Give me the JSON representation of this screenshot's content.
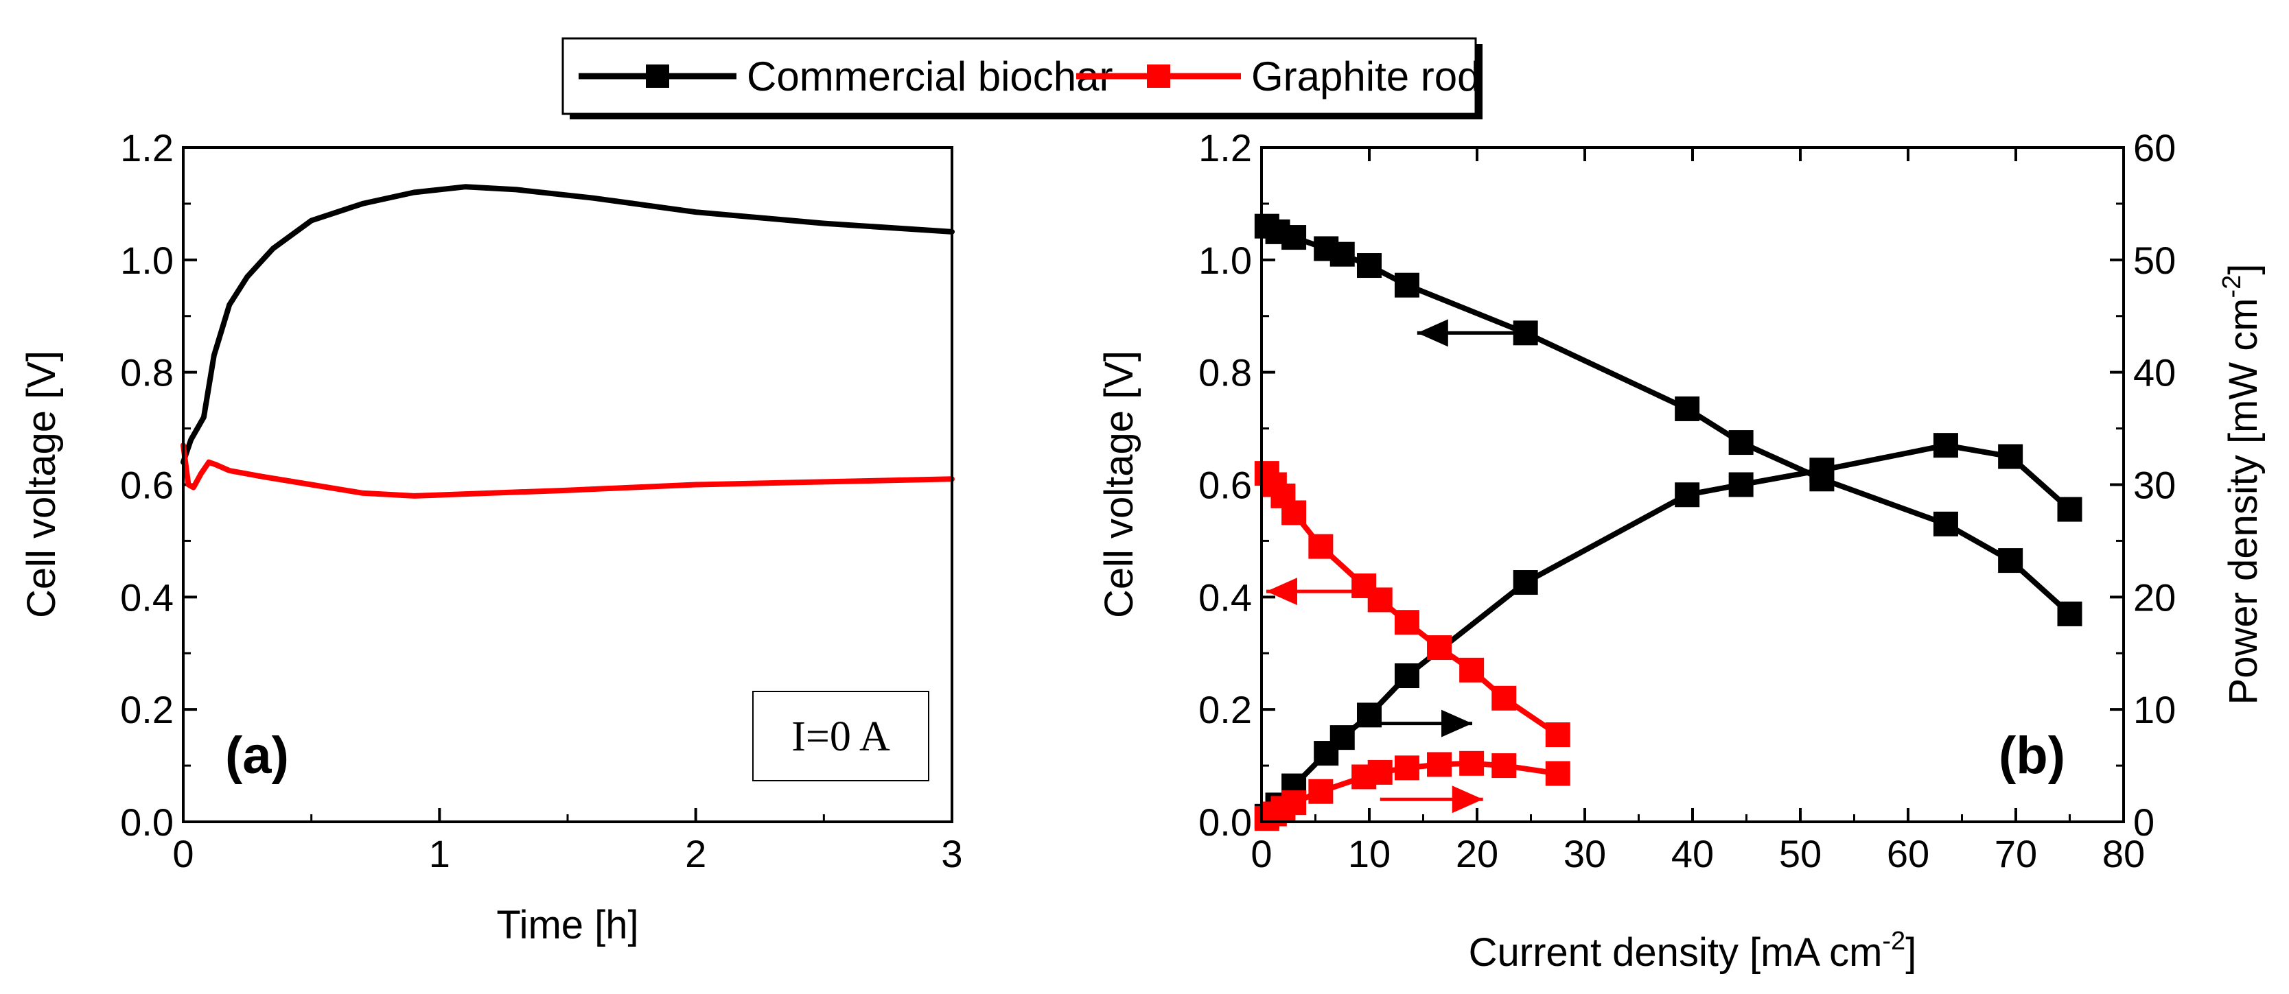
{
  "legend": {
    "items": [
      {
        "label": "Commercial biochar",
        "color": "#000000"
      },
      {
        "label": "Graphite rod",
        "color": "#ff0000"
      }
    ]
  },
  "panel_a": {
    "tag": "(a)",
    "annotation": "I=0 A",
    "xlabel": "Time [h]",
    "ylabel": "Cell voltage [V]",
    "x_ticks": [
      "0",
      "1",
      "2",
      "3"
    ],
    "y_ticks": [
      "0.0",
      "0.2",
      "0.4",
      "0.6",
      "0.8",
      "1.0",
      "1.2"
    ]
  },
  "panel_b": {
    "tag": "(b)",
    "xlabel": "Current density [mA cm",
    "xlabel_sup": "-2",
    "xlabel_end": "]",
    "ylabel": "Cell voltage [V]",
    "y2label": "Power density [mW cm",
    "y2label_sup": "-2",
    "y2label_end": "]",
    "x_ticks": [
      "0",
      "10",
      "20",
      "30",
      "40",
      "50",
      "60",
      "70",
      "80"
    ],
    "y_ticks": [
      "0.0",
      "0.2",
      "0.4",
      "0.6",
      "0.8",
      "1.0",
      "1.2"
    ],
    "y2_ticks": [
      "0",
      "10",
      "20",
      "30",
      "40",
      "50",
      "60"
    ]
  },
  "chart_data": [
    {
      "type": "line",
      "panel": "a",
      "title": "",
      "xlabel": "Time [h]",
      "ylabel": "Cell voltage [V]",
      "xlim": [
        0,
        3
      ],
      "ylim": [
        0,
        1.2
      ],
      "series": [
        {
          "name": "Commercial biochar",
          "color": "#000000",
          "x": [
            0,
            0.03,
            0.08,
            0.12,
            0.18,
            0.25,
            0.35,
            0.5,
            0.7,
            0.9,
            1.1,
            1.3,
            1.6,
            2.0,
            2.5,
            3.0
          ],
          "y": [
            0.64,
            0.68,
            0.72,
            0.83,
            0.92,
            0.97,
            1.02,
            1.07,
            1.1,
            1.12,
            1.13,
            1.125,
            1.11,
            1.085,
            1.065,
            1.05
          ]
        },
        {
          "name": "Graphite rod",
          "color": "#ff0000",
          "x": [
            0,
            0.02,
            0.04,
            0.07,
            0.1,
            0.13,
            0.18,
            0.3,
            0.5,
            0.7,
            0.9,
            1.2,
            1.5,
            2.0,
            2.5,
            3.0
          ],
          "y": [
            0.67,
            0.6,
            0.595,
            0.62,
            0.64,
            0.635,
            0.625,
            0.615,
            0.6,
            0.585,
            0.58,
            0.585,
            0.59,
            0.6,
            0.605,
            0.61
          ]
        }
      ]
    },
    {
      "type": "line",
      "panel": "b",
      "title": "",
      "xlabel": "Current density [mA cm-2]",
      "ylabel": "Cell voltage [V]",
      "y2label": "Power density [mW cm-2]",
      "xlim": [
        0,
        80
      ],
      "ylim": [
        0,
        1.2
      ],
      "y2lim": [
        0,
        60
      ],
      "series": [
        {
          "name": "Commercial biochar",
          "quantity": "voltage",
          "axis": "left",
          "color": "#000000",
          "x": [
            0.5,
            1.5,
            3,
            6,
            7.5,
            10,
            13.5,
            24.5,
            39.5,
            44.5,
            52,
            63.5,
            69.5,
            75
          ],
          "y": [
            1.06,
            1.05,
            1.04,
            1.02,
            1.01,
            0.99,
            0.955,
            0.87,
            0.735,
            0.675,
            0.61,
            0.53,
            0.465,
            0.37
          ]
        },
        {
          "name": "Commercial biochar",
          "quantity": "power",
          "axis": "right",
          "color": "#000000",
          "x": [
            0.5,
            1.5,
            3,
            6,
            7.5,
            10,
            13.5,
            24.5,
            39.5,
            44.5,
            52,
            63.5,
            69.5,
            75
          ],
          "y": [
            0.5,
            1.5,
            3.2,
            6.1,
            7.5,
            9.5,
            13.0,
            21.3,
            29.1,
            30.0,
            31.3,
            33.5,
            32.5,
            27.8
          ]
        },
        {
          "name": "Graphite rod",
          "quantity": "voltage",
          "axis": "left",
          "color": "#ff0000",
          "x": [
            0.5,
            1.2,
            2,
            3,
            5.5,
            9.5,
            11,
            13.5,
            16.5,
            19.5,
            22.5,
            27.5
          ],
          "y": [
            0.62,
            0.6,
            0.58,
            0.55,
            0.49,
            0.42,
            0.395,
            0.355,
            0.31,
            0.27,
            0.22,
            0.155
          ]
        },
        {
          "name": "Graphite rod",
          "quantity": "power",
          "axis": "right",
          "color": "#ff0000",
          "x": [
            0.5,
            1.2,
            2,
            3,
            5.5,
            9.5,
            11,
            13.5,
            16.5,
            19.5,
            22.5,
            27.5
          ],
          "y": [
            0.3,
            0.7,
            1.2,
            1.7,
            2.7,
            4.0,
            4.4,
            4.8,
            5.1,
            5.2,
            5.0,
            4.3
          ]
        }
      ],
      "axis_arrows": [
        {
          "series": "Commercial biochar voltage",
          "points_to": "left",
          "at_x": 24,
          "at_y": 0.87
        },
        {
          "series": "Commercial biochar power",
          "points_to": "right",
          "at_x": 10,
          "at_y": 0.175
        },
        {
          "series": "Graphite rod voltage",
          "points_to": "left",
          "at_x": 10,
          "at_y": 0.41
        },
        {
          "series": "Graphite rod power",
          "points_to": "right",
          "at_x": 11,
          "at_y": 0.04
        }
      ]
    }
  ]
}
